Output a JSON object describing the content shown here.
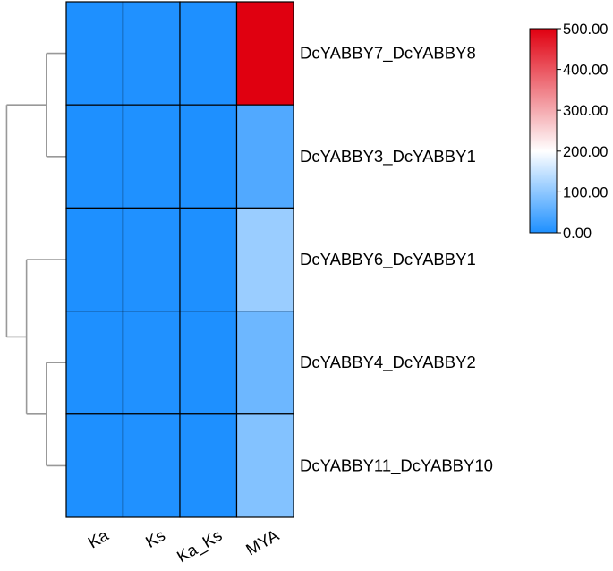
{
  "chart_data": {
    "type": "heatmap",
    "title": "",
    "xlabel": "",
    "ylabel": "",
    "columns": [
      "Ka",
      "Ks",
      "Ka_Ks",
      "MYA"
    ],
    "rows": [
      "DcYABBY7_DcYABBY8",
      "DcYABBY3_DcYABBY1",
      "DcYABBY6_DcYABBY1",
      "DcYABBY4_DcYABBY2",
      "DcYABBY11_DcYABBY10"
    ],
    "values": [
      [
        0.35,
        1.6,
        0.22,
        500
      ],
      [
        0.18,
        0.95,
        0.19,
        45
      ],
      [
        0.3,
        2.1,
        0.14,
        110
      ],
      [
        0.28,
        1.7,
        0.17,
        70
      ],
      [
        0.27,
        1.8,
        0.15,
        90
      ]
    ],
    "color_scale": {
      "min": 0,
      "max": 500,
      "colors": [
        "#1e90ff",
        "#ffffff",
        "#e00010"
      ],
      "ticks": [
        "0.00",
        "100.00",
        "200.00",
        "300.00",
        "400.00",
        "500.00"
      ]
    },
    "row_dendrogram": "((DcYABBY7_DcYABBY8,DcYABBY3_DcYABBY1),(DcYABBY6_DcYABBY1,(DcYABBY4_DcYABBY2,DcYABBY11_DcYABBY10)))",
    "grid": true,
    "legend_position": "top-right"
  }
}
